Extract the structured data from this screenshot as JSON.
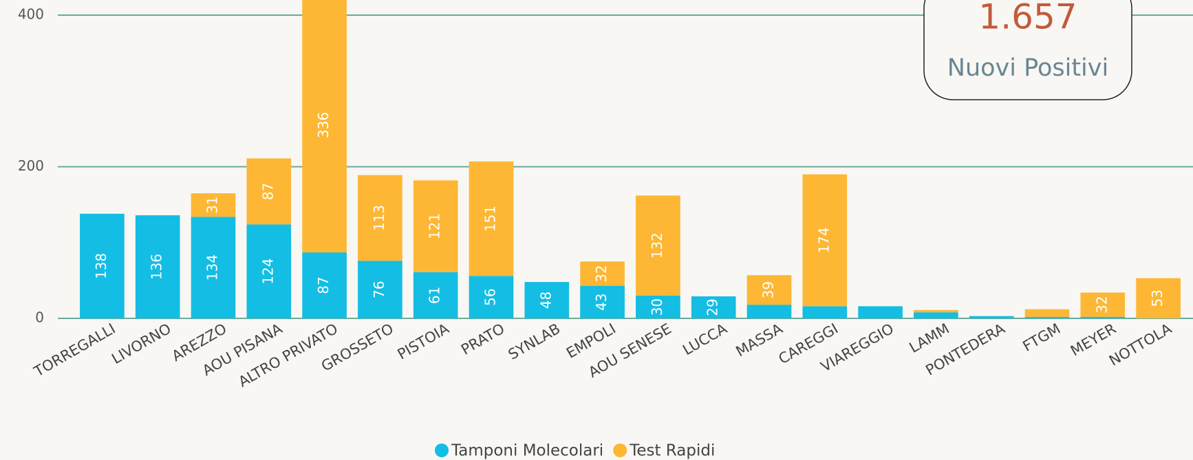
{
  "chart_data": {
    "type": "stacked_bar",
    "categories": [
      "TORREGALLI",
      "LIVORNO",
      "AREZZO",
      "AOU PISANA",
      "ALTRO PRIVATO",
      "GROSSETO",
      "PISTOIA",
      "PRATO",
      "SYNLAB",
      "EMPOLI",
      "AOU SENESE",
      "LUCCA",
      "MASSA",
      "CAREGGI",
      "VIAREGGIO",
      "LAMM",
      "PONTEDERA",
      "FTGM",
      "MEYER",
      "NOTTOLA"
    ],
    "series": [
      {
        "name": "Tamponi Molecolari",
        "color": "#14bde3",
        "values": [
          138,
          136,
          134,
          124,
          87,
          76,
          61,
          56,
          48,
          43,
          30,
          29,
          18,
          16,
          16,
          8,
          3,
          2,
          2,
          null
        ]
      },
      {
        "name": "Test Rapidi",
        "color": "#fdb734",
        "values": [
          null,
          null,
          31,
          87,
          336,
          113,
          121,
          151,
          null,
          32,
          132,
          null,
          39,
          174,
          null,
          3,
          null,
          10,
          32,
          53
        ]
      }
    ],
    "ylim": [
      0,
      420
    ],
    "yticks": [
      0,
      200,
      400
    ],
    "grid": true,
    "legend": "bottom"
  },
  "kpi": {
    "value": "1.657",
    "label": "Nuovi Positivi"
  }
}
